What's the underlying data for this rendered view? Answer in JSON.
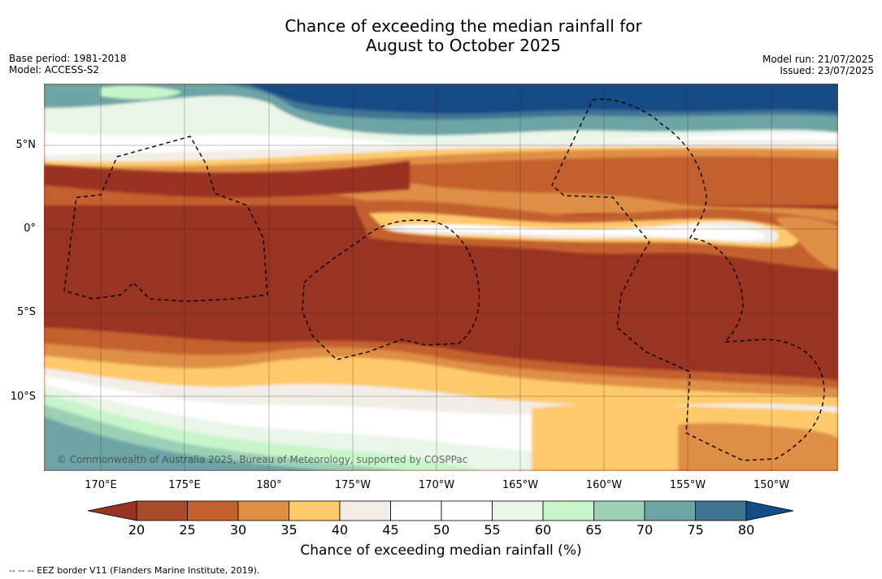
{
  "title": {
    "line1": "Chance of exceeding the median rainfall for",
    "line2": "August to October 2025"
  },
  "meta": {
    "base_period": "Base period: 1981-2018",
    "model": "Model: ACCESS-S2",
    "model_run": "Model run: 21/07/2025",
    "issued": "Issued: 23/07/2025"
  },
  "credit": "© Commonwealth of Australia 2025, Bureau of Meteorology, supported by COSPPac",
  "map": {
    "lat_labels": [
      "5°N",
      "0°",
      "5°S",
      "10°S"
    ],
    "lon_labels": [
      "170°E",
      "175°E",
      "180°",
      "175°W",
      "170°W",
      "165°W",
      "160°W",
      "155°W",
      "150°W"
    ]
  },
  "colorbar": {
    "title": "Chance of exceeding median rainfall (%)",
    "ticks": [
      "20",
      "25",
      "30",
      "35",
      "40",
      "45",
      "50",
      "55",
      "60",
      "65",
      "70",
      "75",
      "80"
    ],
    "colors": [
      "#a84a2c",
      "#c4612e",
      "#de8f44",
      "#fdc96a",
      "#f2ede7",
      "#ffffff",
      "#ffffff",
      "#e9f5e8",
      "#c7f5c9",
      "#9bcfb6",
      "#6da4a6",
      "#3f7493"
    ],
    "under_color": "#993322",
    "over_color": "#134c86"
  },
  "footnote": "--  --  -- EEZ border V11 (Flanders Marine Institute, 2019)."
}
